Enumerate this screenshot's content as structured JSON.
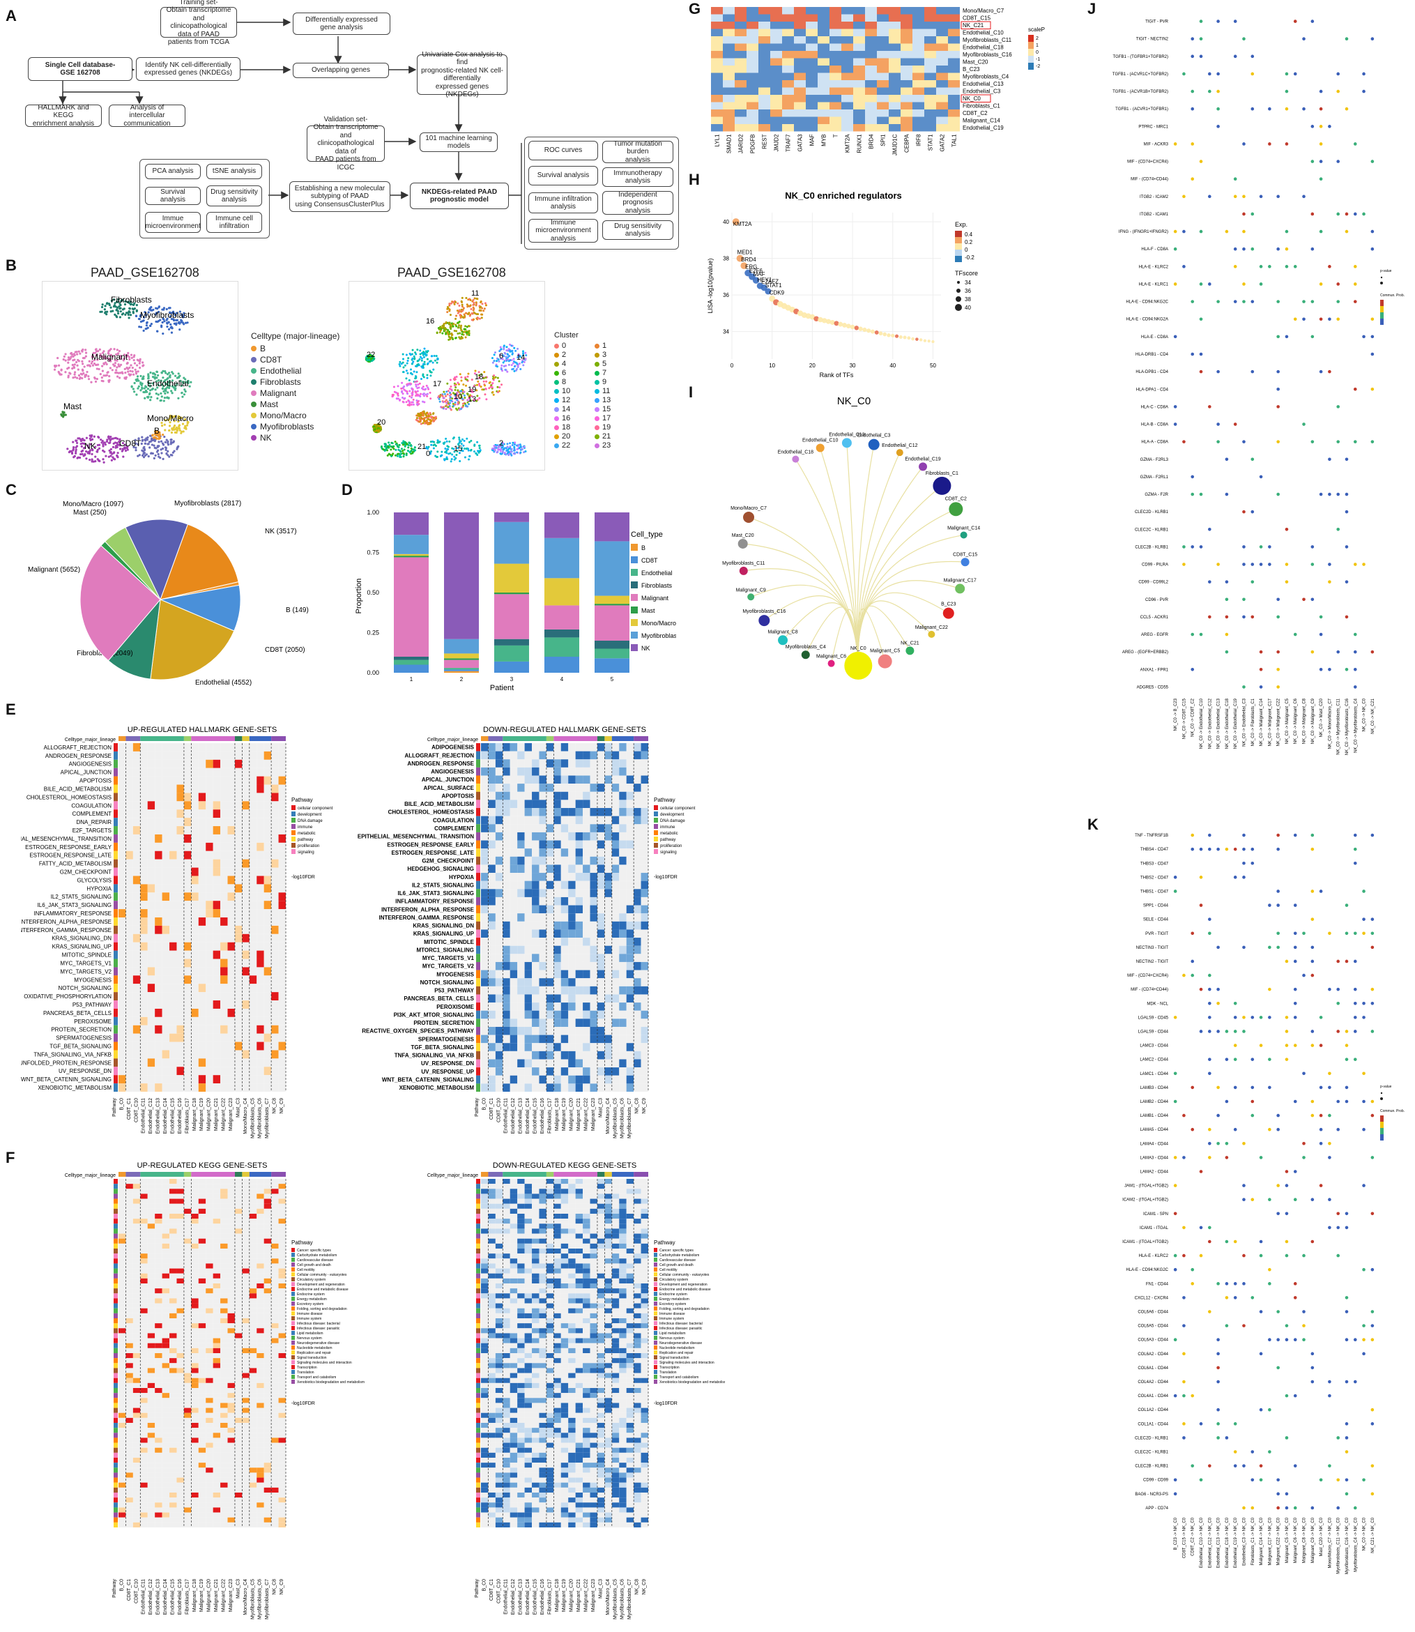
{
  "labels": [
    "A",
    "B",
    "C",
    "D",
    "E",
    "F",
    "G",
    "H",
    "I",
    "J",
    "K"
  ],
  "panelA": {
    "training": "Training set-\nObtain transcriptome and\nclinicopathological data of PAAD\npatients from TCGA",
    "deg": "Differentially expressed\ngene analysis",
    "singlecell": "Single Cell database-\nGSE 162708",
    "nkdeg": "Identify NK cell-differentially\nexpressed genes (NKDEGs)",
    "overlap": "Overlapping genes",
    "univar": "Univariate Cox analysis to find\nprognostic-related NK cell-\ndifferentially\nexpressed genes (NKDEGs)",
    "hallmark": "HALLMARK and KEGG\nenrichment analysis",
    "intercell": "Analysis of intercellular\ncommunication",
    "validation": "Validation set-\nObtain transcriptome and\nclinicopathological data of\nPAAD patients from ICGC",
    "ml": "101 machine learning\nmodels",
    "pca": "PCA analysis",
    "tsne": "tSNE analysis",
    "survival": "Survival analysis",
    "drug": "Drug sensitivity\nanalysis",
    "immmicro": "Immue\nmicroenvironment",
    "immcell": "Immune cell\ninfiltration",
    "subtyping": "Establishing a new molecular\nsubtyping of PAAD\nusing ConsensusClusterPlus",
    "model": "NKDEGs-related PAAD\nprognostic model",
    "roc": "ROC curves",
    "tmb": "Tumor mutation burden\nanalysis",
    "surv2": "Survival analysis",
    "immuno": "Immunotherapy analysis",
    "infil": "Immune infiltration analysis",
    "indep": "Independent prognosis\nanalysis",
    "immmicro2": "Immune microenvironment\nanalysis",
    "drug2": "Drug sensitivity analysis"
  },
  "panelB": {
    "title_left": "PAAD_GSE162708",
    "title_right": "PAAD_GSE162708",
    "celltype_legend_title": "Celltype (major-lineage)",
    "celltypes": [
      "B",
      "CD8T",
      "Endothelial",
      "Fibroblasts",
      "Malignant",
      "Mast",
      "Mono/Macro",
      "Myofibroblasts",
      "NK"
    ],
    "celltype_colors": [
      "#f0982e",
      "#6a6cb8",
      "#47b58a",
      "#1f7f6e",
      "#e07bbd",
      "#3a8f3a",
      "#e3c93a",
      "#3a68c2",
      "#a23fb2"
    ],
    "map_labels": [
      "Fibroblasts",
      "Myofibroblasts",
      "Malignant",
      "Mast",
      "Endothelial",
      "Mono/Macro",
      "NK",
      "CD8T",
      "B"
    ],
    "cluster_legend_title": "Cluster",
    "clusters": [
      "0",
      "1",
      "2",
      "3",
      "4",
      "5",
      "6",
      "7",
      "8",
      "9",
      "10",
      "11",
      "12",
      "13",
      "14",
      "15",
      "16",
      "17",
      "18",
      "19",
      "20",
      "21",
      "22",
      "23"
    ],
    "cluster_map_labels": [
      "11",
      "16",
      "22",
      "6",
      "14",
      "17",
      "18",
      "19",
      "10",
      "13",
      "20",
      "21",
      "15",
      "2",
      "0"
    ]
  },
  "chart_data": [
    {
      "type": "pie",
      "panel": "C",
      "categories": [
        "NK",
        "B",
        "CD8T",
        "Endothelial",
        "Fibroblasts",
        "Malignant",
        "Mast",
        "Mono/Macro",
        "Myofibroblasts"
      ],
      "values": [
        3517,
        149,
        2050,
        4552,
        2049,
        5652,
        250,
        1097,
        2817
      ],
      "labels": [
        "NK (3517)",
        "B (149)",
        "CD8T (2050)",
        "Endothelial (4552)",
        "Fibroblasts (2049)",
        "Malignant (5652)",
        "Mast (250)",
        "Mono/Macro (1097)",
        "Myofibroblasts (2817)"
      ]
    },
    {
      "type": "bar",
      "panel": "D",
      "stacked": true,
      "ylabel": "Proportion",
      "xlabel": "Patient",
      "ylim": [
        0,
        1
      ],
      "yticks": [
        "0.00",
        "0.25",
        "0.50",
        "0.75",
        "1.00"
      ],
      "categories": [
        "1",
        "2",
        "3",
        "4",
        "5"
      ],
      "legend_title": "Cell_type",
      "series": [
        {
          "name": "B",
          "values": [
            0.0,
            0.01,
            0.0,
            0.0,
            0.0
          ]
        },
        {
          "name": "CD8T",
          "values": [
            0.05,
            0.01,
            0.07,
            0.1,
            0.09
          ]
        },
        {
          "name": "Endothelial",
          "values": [
            0.03,
            0.01,
            0.1,
            0.12,
            0.06
          ]
        },
        {
          "name": "Fibroblasts",
          "values": [
            0.02,
            0.0,
            0.04,
            0.05,
            0.05
          ]
        },
        {
          "name": "Malignant",
          "values": [
            0.62,
            0.05,
            0.28,
            0.15,
            0.22
          ]
        },
        {
          "name": "Mast",
          "values": [
            0.01,
            0.01,
            0.01,
            0.0,
            0.01
          ]
        },
        {
          "name": "Mono/Macro",
          "values": [
            0.01,
            0.03,
            0.18,
            0.17,
            0.05
          ]
        },
        {
          "name": "Myofibroblasts",
          "values": [
            0.12,
            0.09,
            0.26,
            0.25,
            0.34
          ]
        },
        {
          "name": "NK",
          "values": [
            0.14,
            0.79,
            0.06,
            0.16,
            0.18
          ]
        }
      ]
    },
    {
      "type": "scatter",
      "panel": "H",
      "title": "NK_C0 enriched regulators",
      "xlabel": "Rank of TFs",
      "ylabel": "LISA -log10(pvalue)",
      "xlim": [
        0,
        52
      ],
      "ylim": [
        32.5,
        40.5
      ],
      "xticks": [
        0,
        10,
        20,
        30,
        40,
        50
      ],
      "yticks": [
        34,
        36,
        38,
        40
      ],
      "legend_exp_title": "Exp.",
      "legend_exp_ticks": [
        "0.4",
        "0.2",
        "0",
        "-0.2"
      ],
      "legend_size_title": "TFscore",
      "legend_size_ticks": [
        "34",
        "36",
        "38",
        "40"
      ],
      "labeled_points": [
        "KMT2A",
        "MED1",
        "BRD4",
        "ERG",
        "E2F6",
        "MAF",
        "HEY1",
        "E2AFZ",
        "STAT1",
        "CDK9"
      ],
      "x": [
        1,
        2,
        3,
        4,
        5,
        6,
        7,
        8,
        9,
        10,
        11,
        12,
        13,
        14,
        15,
        16,
        17,
        18,
        19,
        20,
        21,
        22,
        23,
        24,
        25,
        26,
        27,
        28,
        29,
        30,
        31,
        32,
        33,
        34,
        35,
        36,
        37,
        38,
        39,
        40,
        41,
        42,
        43,
        44,
        45,
        46,
        47,
        48,
        49,
        50
      ],
      "y": [
        40.0,
        38.0,
        37.6,
        37.2,
        37.0,
        36.8,
        36.5,
        36.4,
        36.2,
        35.8,
        35.6,
        35.5,
        35.4,
        35.3,
        35.2,
        35.1,
        35.0,
        34.9,
        34.85,
        34.8,
        34.7,
        34.65,
        34.6,
        34.55,
        34.5,
        34.45,
        34.4,
        34.35,
        34.3,
        34.25,
        34.2,
        34.15,
        34.1,
        34.05,
        34.0,
        33.95,
        33.9,
        33.85,
        33.8,
        33.78,
        33.75,
        33.7,
        33.68,
        33.65,
        33.6,
        33.58,
        33.55,
        33.5,
        33.48,
        33.45
      ]
    }
  ],
  "panelE": {
    "left_title": "UP-REGULATED HALLMARK GENE-SETS",
    "right_title": "DOWN-REGULATED HALLMARK GENE-SETS",
    "row_header": "Celltype_major_lineage",
    "rows": [
      "ALLOGRAFT_REJECTION",
      "ANDROGEN_RESPONSE",
      "ANGIOGENESIS",
      "APICAL_JUNCTION",
      "APOPTOSIS",
      "BILE_ACID_METABOLISM",
      "CHOLESTEROL_HOMEOSTASIS",
      "COAGULATION",
      "COMPLEMENT",
      "DNA_REPAIR",
      "E2F_TARGETS",
      "EPITHELIAL_MESENCHYMAL_TRANSITION",
      "ESTROGEN_RESPONSE_EARLY",
      "ESTROGEN_RESPONSE_LATE",
      "FATTY_ACID_METABOLISM",
      "G2M_CHECKPOINT",
      "GLYCOLYSIS",
      "HYPOXIA",
      "IL2_STAT5_SIGNALING",
      "IL6_JAK_STAT3_SIGNALING",
      "INFLAMMATORY_RESPONSE",
      "INTERFERON_ALPHA_RESPONSE",
      "INTERFERON_GAMMA_RESPONSE",
      "KRAS_SIGNALING_DN",
      "KRAS_SIGNALING_UP",
      "MITOTIC_SPINDLE",
      "MYC_TARGETS_V1",
      "MYC_TARGETS_V2",
      "MYOGENESIS",
      "NOTCH_SIGNALING",
      "OXIDATIVE_PHOSPHORYLATION",
      "P53_PATHWAY",
      "PANCREAS_BETA_CELLS",
      "PEROXISOME",
      "PROTEIN_SECRETION",
      "SPERMATOGENESIS",
      "TGF_BETA_SIGNALING",
      "TNFA_SIGNALING_VIA_NFKB",
      "UNFOLDED_PROTEIN_RESPONSE",
      "UV_RESPONSE_DN",
      "WNT_BETA_CATENIN_SIGNALING",
      "XENOBIOTIC_METABOLISM"
    ],
    "right_rows": [
      "ADIPOGENESIS",
      "ALLOGRAFT_REJECTION",
      "ANDROGEN_RESPONSE",
      "ANGIOGENESIS",
      "APICAL_JUNCTION",
      "APICAL_SURFACE",
      "APOPTOSIS",
      "BILE_ACID_METABOLISM",
      "CHOLESTEROL_HOMEOSTASIS",
      "COAGULATION",
      "COMPLEMENT",
      "EPITHELIAL_MESENCHYMAL_TRANSITION",
      "ESTROGEN_RESPONSE_EARLY",
      "ESTROGEN_RESPONSE_LATE",
      "G2M_CHECKPOINT",
      "HEDGEHOG_SIGNALING",
      "HYPOXIA",
      "IL2_STAT5_SIGNALING",
      "IL6_JAK_STAT3_SIGNALING",
      "INFLAMMATORY_RESPONSE",
      "INTERFERON_ALPHA_RESPONSE",
      "INTERFERON_GAMMA_RESPONSE",
      "KRAS_SIGNALING_DN",
      "KRAS_SIGNALING_UP",
      "MITOTIC_SPINDLE",
      "MTORC1_SIGNALING",
      "MYC_TARGETS_V1",
      "MYC_TARGETS_V2",
      "MYOGENESIS",
      "NOTCH_SIGNALING",
      "P53_PATHWAY",
      "PANCREAS_BETA_CELLS",
      "PEROXISOME",
      "PI3K_AKT_MTOR_SIGNALING",
      "PROTEIN_SECRETION",
      "REACTIVE_OXYGEN_SPECIES_PATHWAY",
      "SPERMATOGENESIS",
      "TGF_BETA_SIGNALING",
      "TNFA_SIGNALING_VIA_NFKB",
      "UV_RESPONSE_DN",
      "UV_RESPONSE_UP",
      "WNT_BETA_CATENIN_SIGNALING",
      "XENOBIOTIC_METABOLISM"
    ],
    "columns": [
      "Pathway",
      "B_C0",
      "CD8T_C1",
      "CD8T_C10",
      "Endothelial_C11",
      "Endothelial_C12",
      "Endothelial_C13",
      "Endothelial_C14",
      "Endothelial_C15",
      "Endothelial_C16",
      "Fibroblasts_C17",
      "Malignant_C18",
      "Malignant_C19",
      "Malignant_C20",
      "Malignant_C21",
      "Malignant_C22",
      "Malignant_C23",
      "Mast_C3",
      "Mono/Macro_C4",
      "Myofibroblasts_C5",
      "Myofibroblasts_C6",
      "Myofibroblasts_C7",
      "NK_C8",
      "NK_C9"
    ],
    "legend_pathway_title": "Pathway",
    "legend_pathway": [
      "cellular component",
      "development",
      "DNA damage",
      "immune",
      "metabolic",
      "pathway",
      "proliferation",
      "signaling"
    ],
    "legend_fdr_title": "-log10FDR"
  },
  "panelF": {
    "left_title": "UP-REGULATED KEGG GENE-SETS",
    "right_title": "DOWN-REGULATED KEGG GENE-SETS",
    "row_header": "Celltype_major_lineage",
    "legend_pathway_title": "Pathway",
    "legend_pathway": [
      "Cancer: specific types",
      "Carbohydrate metabolism",
      "Cardiovascular disease",
      "Cell growth and death",
      "Cell motility",
      "Cellular community - eukaryotes",
      "Circulatory system",
      "Development and regeneration",
      "Endocrine and metabolic disease",
      "Endocrine system",
      "Energy metabolism",
      "Excretory system",
      "Folding, sorting and degradation",
      "Immune disease",
      "Immune system",
      "Infectious disease: bacterial",
      "Infectious disease: parasitic",
      "Lipid metabolism",
      "Nervous system",
      "Neurodegenerative disease",
      "Nucleotide metabolism",
      "Replication and repair",
      "Signal transduction",
      "Signaling molecules and interaction",
      "Transcription",
      "Translation",
      "Transport and catabolism",
      "Xenobiotics biodegradation and metabolism"
    ],
    "legend_fdr_title": "-log10FDR"
  },
  "panelG": {
    "rows": [
      "Mono/Macro_C7",
      "CD8T_C15",
      "NK_C21",
      "Endothelial_C10",
      "Myofibroblasts_C11",
      "Endothelial_C18",
      "Myofibroblasts_C16",
      "Mast_C20",
      "B_C23",
      "Myofibroblasts_C4",
      "Endothelial_C13",
      "Endothelial_C3",
      "NK_C0",
      "Fibroblasts_C1",
      "CD8T_C2",
      "Malignant_C14",
      "Endothelial_C19"
    ],
    "columns": [
      "LYL1",
      "SMAD1",
      "JARID2",
      "PDGFB",
      "REST",
      "JMJD2",
      "TRAF7",
      "GATA3",
      "MAF",
      "MYB",
      "T",
      "KMT2A",
      "RUNX1",
      "BRD4",
      "SPI1",
      "JMJD1C",
      "CEBPA",
      "IRF8",
      "STAT1",
      "GATA2",
      "TAL1"
    ],
    "legend_title": "scaleP",
    "legend_ticks": [
      "2",
      "1",
      "0",
      "-1",
      "-2"
    ]
  },
  "panelI": {
    "title": "NK_C0",
    "nodes": [
      "Endothelial_C18",
      "Endothelial_C10",
      "Endothelial_C13",
      "Endothelial_C3",
      "Endothelial_C12",
      "Endothelial_C19",
      "Fibroblasts_C1",
      "CD8T_C2",
      "Malignant_C14",
      "CD8T_C15",
      "Malignant_C17",
      "B_C23",
      "Malignant_C22",
      "NK_C21",
      "Malignant_C5",
      "NK_C0",
      "Malignant_C6",
      "Myofibroblasts_C4",
      "Malignant_C8",
      "Myofibroblasts_C16",
      "Malignant_C9",
      "Myofibroblasts_C11",
      "Mast_C20",
      "Mono/Macro_C7"
    ]
  },
  "panelJ": {
    "pairs": [
      "TIGIT - PVR",
      "TIGIT - NECTIN2",
      "TGFB1 - (TGFBR1+TGFBR2)",
      "TGFB1 - (ACVR1C+TGFBR2)",
      "TGFB1 - (ACVR1B+TGFBR2)",
      "TGFB1 - (ACVR1+TGFBR1)",
      "PTPRC - MRC1",
      "MIF - ACKR3",
      "MIF - (CD74+CXCR4)",
      "MIF - (CD74+CD44)",
      "ITGB2 - ICAM2",
      "ITGB2 - ICAM1",
      "IFNG - (IFNGR1+IFNGR2)",
      "HLA-F - CD8A",
      "HLA-E - KLRC2",
      "HLA-E - KLRC1",
      "HLA-E - CD94:NKG2C",
      "HLA-E - CD94:NKG2A",
      "HLA-E - CD8A",
      "HLA-DRB1 - CD4",
      "HLA-DPB1 - CD4",
      "HLA-DPA1 - CD4",
      "HLA-C - CD8A",
      "HLA-B - CD8A",
      "HLA-A - CD8A",
      "GZMA - F2RL3",
      "GZMA - F2RL1",
      "GZMA - F2R",
      "CLEC2D - KLRB1",
      "CLEC2C - KLRB1",
      "CLEC2B - KLRB1",
      "CD99 - PILRA",
      "CD99 - CD99L2",
      "CD96 - PVR",
      "CCL5 - ACKR1",
      "AREG - EGFR",
      "AREG - (EGFR+ERBB2)",
      "ANXA1 - FPR1",
      "ADGRE5 - CD55"
    ],
    "columns": [
      "NK_C0 -> B_C23",
      "NK_C0 -> CD8T_C15",
      "NK_C0 -> CD8T_C2",
      "NK_C0 -> Endothelial_C10",
      "NK_C0 -> Endothelial_C12",
      "NK_C0 -> Endothelial_C13",
      "NK_C0 -> Endothelial_C18",
      "NK_C0 -> Endothelial_C19",
      "NK_C0 -> Endothelial_C3",
      "NK_C0 -> Fibroblasts_C1",
      "NK_C0 -> Malignant_C14",
      "NK_C0 -> Malignant_C17",
      "NK_C0 -> Malignant_C22",
      "NK_C0 -> Malignant_C5",
      "NK_C0 -> Malignant_C6",
      "NK_C0 -> Malignant_C8",
      "NK_C0 -> Malignant_C9",
      "NK_C0 -> Mast_C20",
      "NK_C0 -> Mono/Macro_C7",
      "NK_C0 -> Myofibroblasts_C11",
      "NK_C0 -> Myofibroblasts_C16",
      "NK_C0 -> Myofibroblasts_C4",
      "NK_C0 -> NK_C0",
      "NK_C0 -> NK_C21"
    ],
    "legend_p": "p-value",
    "legend_prob": "Commun. Prob."
  },
  "panelK": {
    "pairs": [
      "TNF - TNFRSF1B",
      "THBS4 - CD47",
      "THBS3 - CD47",
      "THBS2 - CD47",
      "THBS1 - CD47",
      "SPP1 - CD44",
      "SELE - CD44",
      "PVR - TIGIT",
      "NECTIN3 - TIGIT",
      "NECTIN2 - TIGIT",
      "MIF - (CD74+CXCR4)",
      "MIF - (CD74+CD44)",
      "MDK - NCL",
      "LGALS9 - CD45",
      "LGALS9 - CD44",
      "LAMC3 - CD44",
      "LAMC2 - CD44",
      "LAMC1 - CD44",
      "LAMB3 - CD44",
      "LAMB2 - CD44",
      "LAMB1 - CD44",
      "LAMA5 - CD44",
      "LAMA4 - CD44",
      "LAMA3 - CD44",
      "LAMA2 - CD44",
      "JAM1 - (ITGAL+ITGB2)",
      "ICAM2 - (ITGAL+ITGB2)",
      "ICAM1 - SPN",
      "ICAM1 - ITGAL",
      "ICAM1 - (ITGAL+ITGB2)",
      "HLA-E - KLRC2",
      "HLA-E - CD94:NKG2C",
      "FN1 - CD44",
      "CXCL12 - CXCR4",
      "COL6A6 - CD44",
      "COL6A5 - CD44",
      "COL6A3 - CD44",
      "COL6A2 - CD44",
      "COL6A1 - CD44",
      "COL4A2 - CD44",
      "COL4A1 - CD44",
      "COL1A2 - CD44",
      "COL1A1 - CD44",
      "CLEC2D - KLRB1",
      "CLEC2C - KLRB1",
      "CLEC2B - KLRB1",
      "CD99 - CD99",
      "BAG6 - NCR3-PS",
      "APP - CD74"
    ],
    "columns": [
      "B_C23 -> NK_C0",
      "CD8T_C15 -> NK_C0",
      "CD8T_C2 -> NK_C0",
      "Endothelial_C10 -> NK_C0",
      "Endothelial_C12 -> NK_C0",
      "Endothelial_C13 -> NK_C0",
      "Endothelial_C18 -> NK_C0",
      "Endothelial_C19 -> NK_C0",
      "Endothelial_C3 -> NK_C0",
      "Fibroblasts_C1 -> NK_C0",
      "Malignant_C14 -> NK_C0",
      "Malignant_C17 -> NK_C0",
      "Malignant_C22 -> NK_C0",
      "Malignant_C5 -> NK_C0",
      "Malignant_C6 -> NK_C0",
      "Malignant_C8 -> NK_C0",
      "Malignant_C9 -> NK_C0",
      "Mast_C20 -> NK_C0",
      "Mono/Macro_C7 -> NK_C0",
      "Myofibroblasts_C11 -> NK_C0",
      "Myofibroblasts_C16 -> NK_C0",
      "Myofibroblasts_C4 -> NK_C0",
      "NK_C0 -> NK_C0",
      "NK_C21 -> NK_C0"
    ],
    "legend_p": "p-value",
    "legend_prob": "Commun. Prob."
  }
}
